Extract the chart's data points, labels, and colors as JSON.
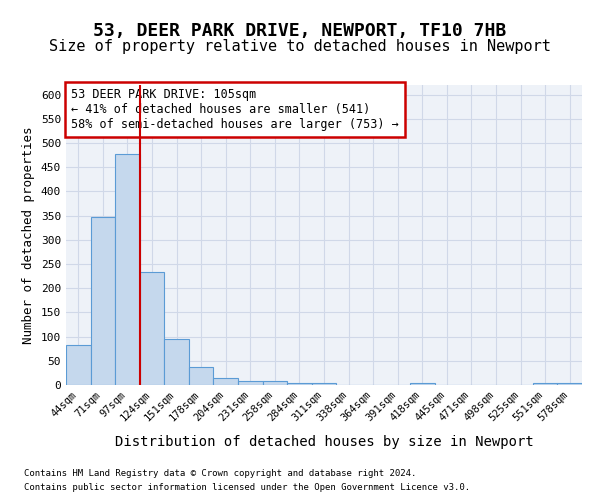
{
  "title1": "53, DEER PARK DRIVE, NEWPORT, TF10 7HB",
  "title2": "Size of property relative to detached houses in Newport",
  "xlabel": "Distribution of detached houses by size in Newport",
  "ylabel": "Number of detached properties",
  "footnote1": "Contains HM Land Registry data © Crown copyright and database right 2024.",
  "footnote2": "Contains public sector information licensed under the Open Government Licence v3.0.",
  "bin_labels": [
    "44sqm",
    "71sqm",
    "97sqm",
    "124sqm",
    "151sqm",
    "178sqm",
    "204sqm",
    "231sqm",
    "258sqm",
    "284sqm",
    "311sqm",
    "338sqm",
    "364sqm",
    "391sqm",
    "418sqm",
    "445sqm",
    "471sqm",
    "498sqm",
    "525sqm",
    "551sqm",
    "578sqm"
  ],
  "bar_values": [
    82,
    348,
    477,
    234,
    95,
    37,
    15,
    8,
    8,
    5,
    5,
    0,
    0,
    0,
    5,
    0,
    0,
    0,
    0,
    5,
    5
  ],
  "bar_color": "#c5d8ed",
  "bar_edgecolor": "#5b9bd5",
  "grid_color": "#d0d8e8",
  "vline_x": 2.5,
  "vline_color": "#cc0000",
  "annotation_text": "53 DEER PARK DRIVE: 105sqm\n← 41% of detached houses are smaller (541)\n58% of semi-detached houses are larger (753) →",
  "annotation_box_color": "#cc0000",
  "ylim": [
    0,
    620
  ],
  "yticks": [
    0,
    50,
    100,
    150,
    200,
    250,
    300,
    350,
    400,
    450,
    500,
    550,
    600
  ],
  "background_color": "#eef2f8",
  "title1_fontsize": 13,
  "title2_fontsize": 11,
  "xlabel_fontsize": 10,
  "ylabel_fontsize": 9
}
